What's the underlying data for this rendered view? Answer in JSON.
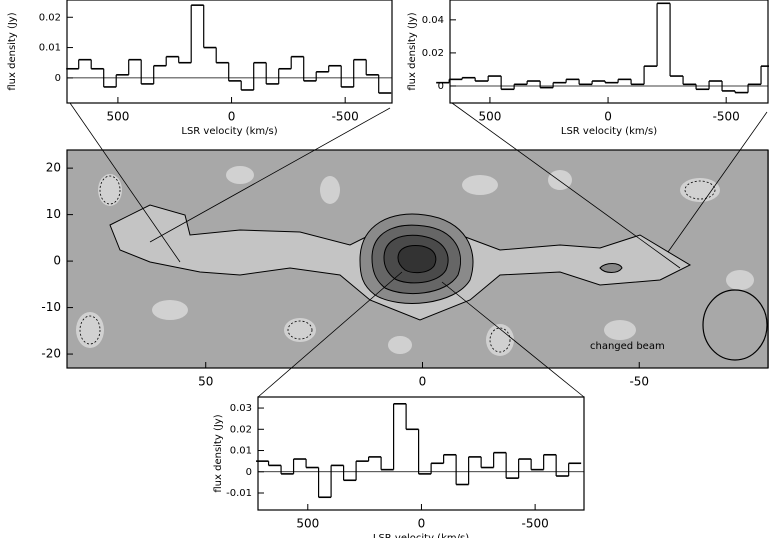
{
  "chart_data": [
    {
      "type": "step",
      "ylabel": "flux density (Jy)",
      "xlabel": "LSR velocity (km/s)",
      "x": [
        700,
        645,
        590,
        535,
        480,
        425,
        370,
        315,
        260,
        205,
        150,
        95,
        40,
        -15,
        -70,
        -125,
        -180,
        -235,
        -290,
        -345,
        -400,
        -455,
        -510,
        -565,
        -620,
        -675
      ],
      "values": [
        0.003,
        0.006,
        0.003,
        -0.003,
        0.001,
        0.006,
        -0.002,
        0.004,
        0.007,
        0.005,
        0.024,
        0.01,
        0.005,
        -0.001,
        -0.004,
        0.005,
        -0.002,
        0.003,
        0.007,
        -0.001,
        0.002,
        0.004,
        -0.003,
        0.006,
        0.001,
        -0.005
      ],
      "color": "#000000",
      "xlim": [
        724,
        -706
      ],
      "ylim": [
        -0.0083,
        0.0257
      ],
      "xticks": [
        500,
        0,
        -500
      ],
      "yticks": [
        0,
        0.01,
        0.02
      ]
    },
    {
      "type": "step",
      "ylabel": "flux density (Jy)",
      "xlabel": "LSR velocity (km/s)",
      "x": [
        700,
        645,
        590,
        535,
        480,
        425,
        370,
        315,
        260,
        205,
        150,
        95,
        40,
        -15,
        -70,
        -125,
        -180,
        -235,
        -290,
        -345,
        -400,
        -455,
        -510,
        -565,
        -620,
        -675
      ],
      "values": [
        0.002,
        0.004,
        0.005,
        0.003,
        0.006,
        -0.002,
        0.001,
        0.003,
        -0.001,
        0.002,
        0.004,
        0.001,
        0.003,
        0.002,
        0.004,
        0.001,
        0.012,
        0.05,
        0.006,
        0.001,
        -0.002,
        0.003,
        -0.003,
        -0.004,
        0.001,
        0.012
      ],
      "color": "#000000",
      "xlim": [
        669,
        -677
      ],
      "ylim": [
        -0.0103,
        0.052
      ],
      "xticks": [
        500,
        0,
        -500
      ],
      "yticks": [
        0,
        0.02,
        0.04
      ]
    },
    {
      "type": "step",
      "ylabel": "flux density (Jy)",
      "xlabel": "LSR velocity (km/s)",
      "x": [
        700,
        645,
        590,
        535,
        480,
        425,
        370,
        315,
        260,
        205,
        150,
        95,
        40,
        -15,
        -70,
        -125,
        -180,
        -235,
        -290,
        -345,
        -400,
        -455,
        -510,
        -565,
        -620,
        -675
      ],
      "values": [
        0.005,
        0.003,
        -0.001,
        0.006,
        0.002,
        -0.012,
        0.003,
        -0.004,
        0.005,
        0.007,
        0.001,
        0.032,
        0.02,
        -0.001,
        0.004,
        0.008,
        -0.006,
        0.007,
        0.002,
        0.009,
        -0.003,
        0.006,
        0.001,
        0.008,
        -0.002,
        0.004
      ],
      "color": "#000000",
      "xlim": [
        719,
        -715
      ],
      "ylim": [
        -0.018,
        0.0352
      ],
      "xticks": [
        500,
        0,
        -500
      ],
      "yticks": [
        -0.01,
        0,
        0.01,
        0.02,
        0.03
      ]
    },
    {
      "type": "contour",
      "annotation": "changed beam",
      "xlim": [
        82,
        -79.7
      ],
      "ylim": [
        -23,
        23.9
      ],
      "xticks": [
        50,
        0,
        -50
      ],
      "yticks": [
        -20,
        -10,
        0,
        10,
        20
      ]
    }
  ]
}
